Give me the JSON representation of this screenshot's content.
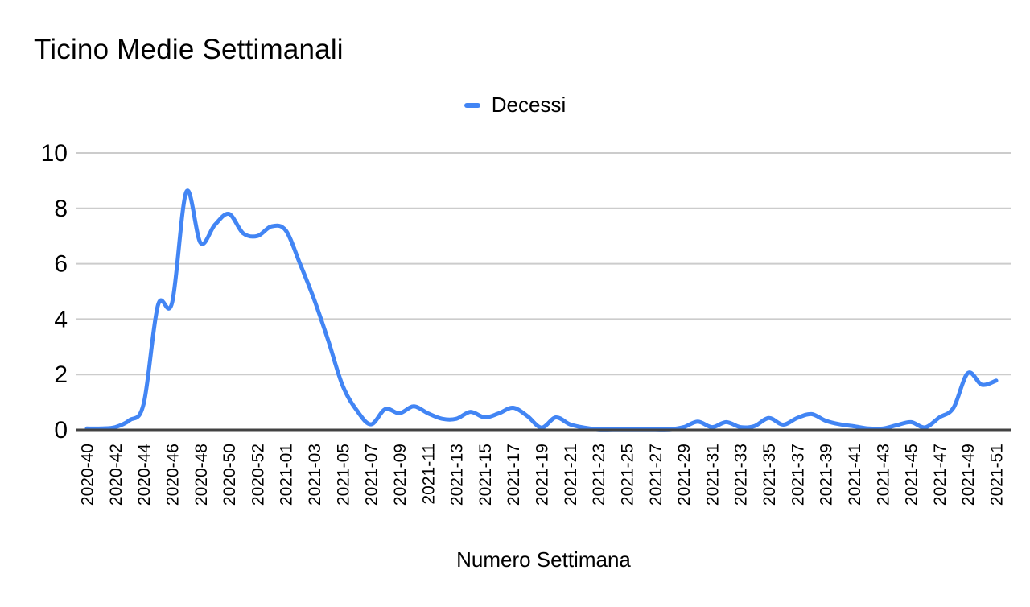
{
  "title": "Ticino Medie Settimanali",
  "legend": {
    "items": [
      {
        "label": "Decessi",
        "color": "#4285F4"
      }
    ]
  },
  "axis": {
    "x_title": "Numero Settimana"
  },
  "colors": {
    "line": "#4285F4",
    "grid": "#cccccc",
    "axis_line": "#424242",
    "text": "#000000",
    "background": "#ffffff"
  },
  "chart_data": {
    "type": "line",
    "smooth": true,
    "title": "Ticino Medie Settimanali",
    "xlabel": "Numero Settimana",
    "ylabel": "",
    "ylim": [
      0,
      10
    ],
    "yticks": [
      0,
      2,
      4,
      6,
      8,
      10
    ],
    "grid": true,
    "legend_position": "top",
    "x_labels_shown_every": 2,
    "x": [
      "2020-40",
      "2020-41",
      "2020-42",
      "2020-43",
      "2020-44",
      "2020-45",
      "2020-46",
      "2020-47",
      "2020-48",
      "2020-49",
      "2020-50",
      "2020-51",
      "2020-52",
      "2020-53",
      "2021-01",
      "2021-02",
      "2021-03",
      "2021-04",
      "2021-05",
      "2021-06",
      "2021-07",
      "2021-08",
      "2021-09",
      "2021-10",
      "2021-11",
      "2021-12",
      "2021-13",
      "2021-14",
      "2021-15",
      "2021-16",
      "2021-17",
      "2021-18",
      "2021-19",
      "2021-20",
      "2021-21",
      "2021-22",
      "2021-23",
      "2021-24",
      "2021-25",
      "2021-26",
      "2021-27",
      "2021-28",
      "2021-29",
      "2021-30",
      "2021-31",
      "2021-32",
      "2021-33",
      "2021-34",
      "2021-35",
      "2021-36",
      "2021-37",
      "2021-38",
      "2021-39",
      "2021-40",
      "2021-41",
      "2021-42",
      "2021-43",
      "2021-44",
      "2021-45",
      "2021-46",
      "2021-47",
      "2021-48",
      "2021-49",
      "2021-50",
      "2021-51"
    ],
    "series": [
      {
        "name": "Decessi",
        "color": "#4285F4",
        "values": [
          0.05,
          0.05,
          0.1,
          0.35,
          0.95,
          4.5,
          4.6,
          8.6,
          6.75,
          7.4,
          7.8,
          7.1,
          7.0,
          7.35,
          7.2,
          6.0,
          4.7,
          3.2,
          1.6,
          0.7,
          0.2,
          0.75,
          0.6,
          0.85,
          0.6,
          0.4,
          0.4,
          0.65,
          0.45,
          0.6,
          0.8,
          0.5,
          0.08,
          0.45,
          0.2,
          0.08,
          0.02,
          0.02,
          0.02,
          0.02,
          0.02,
          0.02,
          0.1,
          0.3,
          0.1,
          0.28,
          0.1,
          0.14,
          0.43,
          0.19,
          0.43,
          0.57,
          0.33,
          0.2,
          0.13,
          0.05,
          0.05,
          0.17,
          0.28,
          0.09,
          0.45,
          0.8,
          2.05,
          1.63,
          1.78
        ]
      }
    ]
  }
}
